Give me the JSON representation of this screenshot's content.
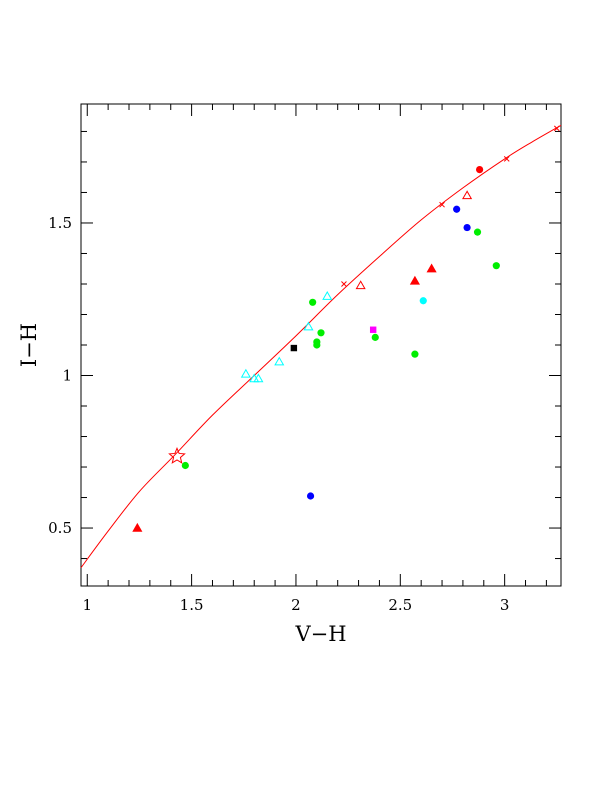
{
  "chart_data": {
    "type": "scatter",
    "xlabel": "V−H",
    "ylabel": "I−H",
    "xlim": [
      0.97,
      3.27
    ],
    "ylim": [
      0.31,
      1.89
    ],
    "x_ticks": [
      {
        "value": 1,
        "label": "1"
      },
      {
        "value": 1.5,
        "label": "1.5"
      },
      {
        "value": 2,
        "label": "2"
      },
      {
        "value": 2.5,
        "label": "2.5"
      },
      {
        "value": 3,
        "label": "3"
      }
    ],
    "y_ticks": [
      {
        "value": 0.5,
        "label": "0.5"
      },
      {
        "value": 1,
        "label": "1"
      },
      {
        "value": 1.5,
        "label": "1.5"
      }
    ],
    "grid": false,
    "legend": "none",
    "curve": {
      "color": "#ff0000",
      "points": [
        [
          0.97,
          0.37
        ],
        [
          1.1,
          0.49
        ],
        [
          1.25,
          0.62
        ],
        [
          1.42,
          0.74
        ],
        [
          1.6,
          0.87
        ],
        [
          1.8,
          1.0
        ],
        [
          2.0,
          1.13
        ],
        [
          2.2,
          1.265
        ],
        [
          2.4,
          1.39
        ],
        [
          2.6,
          1.51
        ],
        [
          2.8,
          1.615
        ],
        [
          3.0,
          1.71
        ],
        [
          3.13,
          1.765
        ],
        [
          3.27,
          1.82
        ]
      ],
      "cross_markers": [
        [
          2.23,
          1.3
        ],
        [
          2.7,
          1.56
        ],
        [
          3.01,
          1.71
        ],
        [
          3.25,
          1.81
        ]
      ]
    },
    "points": [
      {
        "x": 1.43,
        "y": 0.735,
        "shape": "star-open",
        "color": "#ff0000"
      },
      {
        "x": 1.47,
        "y": 0.705,
        "shape": "circle",
        "color": "#00ee00"
      },
      {
        "x": 1.24,
        "y": 0.5,
        "shape": "triangle",
        "color": "#ff0000"
      },
      {
        "x": 2.07,
        "y": 0.605,
        "shape": "circle",
        "color": "#0000ff"
      },
      {
        "x": 1.99,
        "y": 1.09,
        "shape": "square",
        "color": "#000000"
      },
      {
        "x": 1.76,
        "y": 1.005,
        "shape": "triangle-open",
        "color": "#00ffff"
      },
      {
        "x": 1.8,
        "y": 0.99,
        "shape": "triangle-open",
        "color": "#00ffff"
      },
      {
        "x": 1.82,
        "y": 0.99,
        "shape": "triangle-open",
        "color": "#00ffff"
      },
      {
        "x": 1.92,
        "y": 1.045,
        "shape": "triangle-open",
        "color": "#00ffff"
      },
      {
        "x": 2.06,
        "y": 1.16,
        "shape": "triangle-open",
        "color": "#00ffff"
      },
      {
        "x": 2.15,
        "y": 1.26,
        "shape": "triangle-open",
        "color": "#00ffff"
      },
      {
        "x": 2.08,
        "y": 1.24,
        "shape": "circle",
        "color": "#00ee00"
      },
      {
        "x": 2.1,
        "y": 1.11,
        "shape": "circle",
        "color": "#00ee00"
      },
      {
        "x": 2.1,
        "y": 1.1,
        "shape": "circle",
        "color": "#00ee00"
      },
      {
        "x": 2.12,
        "y": 1.14,
        "shape": "circle",
        "color": "#00ee00"
      },
      {
        "x": 2.37,
        "y": 1.15,
        "shape": "square",
        "color": "#ff00ff"
      },
      {
        "x": 2.38,
        "y": 1.125,
        "shape": "circle",
        "color": "#00ee00"
      },
      {
        "x": 2.31,
        "y": 1.295,
        "shape": "triangle-open",
        "color": "#ff0000"
      },
      {
        "x": 2.57,
        "y": 1.31,
        "shape": "triangle",
        "color": "#ff0000"
      },
      {
        "x": 2.57,
        "y": 1.07,
        "shape": "circle",
        "color": "#00ee00"
      },
      {
        "x": 2.61,
        "y": 1.245,
        "shape": "circle",
        "color": "#00ffff"
      },
      {
        "x": 2.65,
        "y": 1.35,
        "shape": "triangle",
        "color": "#ff0000"
      },
      {
        "x": 2.77,
        "y": 1.545,
        "shape": "circle",
        "color": "#0000ff"
      },
      {
        "x": 2.82,
        "y": 1.485,
        "shape": "circle",
        "color": "#0000ff"
      },
      {
        "x": 2.82,
        "y": 1.59,
        "shape": "triangle-open",
        "color": "#ff0000"
      },
      {
        "x": 2.87,
        "y": 1.47,
        "shape": "circle",
        "color": "#00ee00"
      },
      {
        "x": 2.88,
        "y": 1.675,
        "shape": "circle",
        "color": "#ff0000"
      },
      {
        "x": 2.96,
        "y": 1.36,
        "shape": "circle",
        "color": "#00ee00"
      }
    ]
  }
}
